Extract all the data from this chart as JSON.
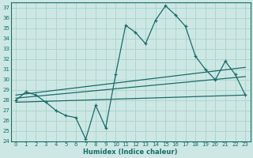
{
  "xlabel": "Humidex (Indice chaleur)",
  "background_color": "#cde8e4",
  "grid_color": "#b0d4ce",
  "line_color": "#1a6b6b",
  "xlim": [
    -0.5,
    23.5
  ],
  "ylim": [
    24,
    37.5
  ],
  "xticks": [
    0,
    1,
    2,
    3,
    4,
    5,
    6,
    7,
    8,
    9,
    10,
    11,
    12,
    13,
    14,
    15,
    16,
    17,
    18,
    19,
    20,
    21,
    22,
    23
  ],
  "yticks": [
    24,
    25,
    26,
    27,
    28,
    29,
    30,
    31,
    32,
    33,
    34,
    35,
    36,
    37
  ],
  "main_x": [
    0,
    1,
    2,
    3,
    4,
    5,
    6,
    7,
    8,
    9,
    10,
    11,
    12,
    13,
    14,
    15,
    16,
    17,
    18,
    19,
    20,
    21,
    22,
    23
  ],
  "main_y": [
    28.0,
    28.8,
    28.5,
    27.8,
    27.0,
    26.5,
    26.3,
    24.2,
    27.5,
    25.3,
    30.5,
    35.3,
    34.6,
    33.5,
    35.8,
    37.2,
    36.3,
    35.2,
    32.3,
    31.0,
    30.0,
    31.8,
    30.5,
    28.5
  ],
  "trend1_x": [
    0,
    23
  ],
  "trend1_y": [
    28.5,
    31.2
  ],
  "trend2_x": [
    0,
    23
  ],
  "trend2_y": [
    28.2,
    30.3
  ],
  "trend3_x": [
    0,
    23
  ],
  "trend3_y": [
    27.8,
    28.5
  ]
}
